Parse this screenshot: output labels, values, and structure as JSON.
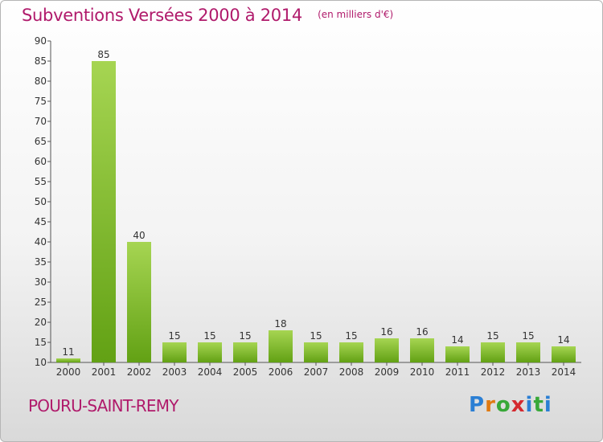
{
  "header": {
    "title": "Subventions Versées 2000 à 2014",
    "unit": "(en milliers d'€)"
  },
  "commune": "POURU-SAINT-REMY",
  "brand": {
    "logo_text": "Proxiti"
  },
  "colors": {
    "bar_light": "#a6d552",
    "bar_dark": "#62a114",
    "title": "#b01a6b",
    "axis": "#555555"
  },
  "chart_data": {
    "type": "bar",
    "title": "Subventions Versées 2000 à 2014",
    "subtitle": "(en milliers d'€)",
    "xlabel": "",
    "ylabel": "",
    "categories": [
      "2000",
      "2001",
      "2002",
      "2003",
      "2004",
      "2005",
      "2006",
      "2007",
      "2008",
      "2009",
      "2010",
      "2011",
      "2012",
      "2013",
      "2014"
    ],
    "values": [
      11,
      85,
      40,
      15,
      15,
      15,
      18,
      15,
      15,
      16,
      16,
      14,
      15,
      15,
      14
    ],
    "ylim": [
      10,
      90
    ],
    "yticks": [
      10,
      15,
      20,
      25,
      30,
      35,
      40,
      45,
      50,
      55,
      60,
      65,
      70,
      75,
      80,
      85,
      90
    ],
    "grid": false,
    "data_labels": true
  }
}
